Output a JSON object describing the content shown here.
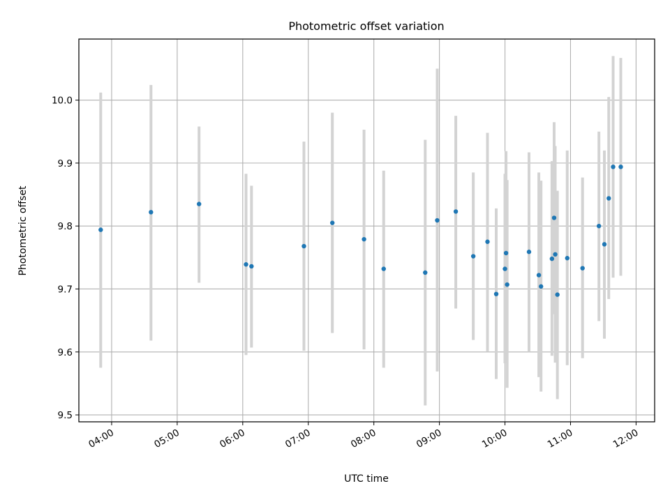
{
  "chart_data": {
    "type": "scatter",
    "title": "Photometric offset variation",
    "xlabel": "UTC time",
    "ylabel": "Photometric offset",
    "x_is_time": true,
    "x_ticks": [
      "04:00",
      "05:00",
      "06:00",
      "07:00",
      "08:00",
      "09:00",
      "10:00",
      "11:00",
      "12:00"
    ],
    "y_ticks": [
      "9.5",
      "9.6",
      "9.7",
      "9.8",
      "9.9",
      "10.0"
    ],
    "xlim": [
      "03:30",
      "12:17"
    ],
    "ylim": [
      9.489,
      10.097
    ],
    "grid": true,
    "colors": {
      "point": "#1f77b4",
      "errorbar": "#d3d3d3",
      "grid": "#b0b0b0",
      "axes": "#000000"
    },
    "points": [
      {
        "x": "03:50",
        "y": 9.794,
        "ylow": 9.575,
        "yhigh": 10.012
      },
      {
        "x": "04:36",
        "y": 9.822,
        "ylow": 9.618,
        "yhigh": 10.024
      },
      {
        "x": "05:20",
        "y": 9.835,
        "ylow": 9.71,
        "yhigh": 9.958
      },
      {
        "x": "06:03",
        "y": 9.739,
        "ylow": 9.595,
        "yhigh": 9.883
      },
      {
        "x": "06:08",
        "y": 9.736,
        "ylow": 9.607,
        "yhigh": 9.864
      },
      {
        "x": "06:56",
        "y": 9.768,
        "ylow": 9.602,
        "yhigh": 9.934
      },
      {
        "x": "07:22",
        "y": 9.805,
        "ylow": 9.63,
        "yhigh": 9.98
      },
      {
        "x": "07:51",
        "y": 9.779,
        "ylow": 9.604,
        "yhigh": 9.953
      },
      {
        "x": "08:09",
        "y": 9.732,
        "ylow": 9.575,
        "yhigh": 9.888
      },
      {
        "x": "08:47",
        "y": 9.726,
        "ylow": 9.515,
        "yhigh": 9.937
      },
      {
        "x": "08:58",
        "y": 9.809,
        "ylow": 9.569,
        "yhigh": 10.05
      },
      {
        "x": "09:15",
        "y": 9.823,
        "ylow": 9.669,
        "yhigh": 9.975
      },
      {
        "x": "09:31",
        "y": 9.752,
        "ylow": 9.619,
        "yhigh": 9.885
      },
      {
        "x": "09:44",
        "y": 9.775,
        "ylow": 9.601,
        "yhigh": 9.948
      },
      {
        "x": "09:52",
        "y": 9.692,
        "ylow": 9.557,
        "yhigh": 9.828
      },
      {
        "x": "10:00",
        "y": 9.732,
        "ylow": 9.582,
        "yhigh": 9.883
      },
      {
        "x": "10:01",
        "y": 9.757,
        "ylow": 9.59,
        "yhigh": 9.919
      },
      {
        "x": "10:02",
        "y": 9.707,
        "ylow": 9.543,
        "yhigh": 9.873
      },
      {
        "x": "10:22",
        "y": 9.759,
        "ylow": 9.6,
        "yhigh": 9.917
      },
      {
        "x": "10:31",
        "y": 9.722,
        "ylow": 9.56,
        "yhigh": 9.885
      },
      {
        "x": "10:33",
        "y": 9.704,
        "ylow": 9.537,
        "yhigh": 9.872
      },
      {
        "x": "10:43",
        "y": 9.748,
        "ylow": 9.594,
        "yhigh": 9.903
      },
      {
        "x": "10:45",
        "y": 9.813,
        "ylow": 9.66,
        "yhigh": 9.965
      },
      {
        "x": "10:46",
        "y": 9.755,
        "ylow": 9.583,
        "yhigh": 9.927
      },
      {
        "x": "10:48",
        "y": 9.691,
        "ylow": 9.525,
        "yhigh": 9.856
      },
      {
        "x": "10:57",
        "y": 9.749,
        "ylow": 9.579,
        "yhigh": 9.92
      },
      {
        "x": "11:11",
        "y": 9.733,
        "ylow": 9.59,
        "yhigh": 9.877
      },
      {
        "x": "11:26",
        "y": 9.8,
        "ylow": 9.649,
        "yhigh": 9.95
      },
      {
        "x": "11:31",
        "y": 9.771,
        "ylow": 9.621,
        "yhigh": 9.92
      },
      {
        "x": "11:35",
        "y": 9.844,
        "ylow": 9.684,
        "yhigh": 10.005
      },
      {
        "x": "11:39",
        "y": 9.894,
        "ylow": 9.718,
        "yhigh": 10.07
      },
      {
        "x": "11:46",
        "y": 9.894,
        "ylow": 9.721,
        "yhigh": 10.067
      }
    ]
  }
}
